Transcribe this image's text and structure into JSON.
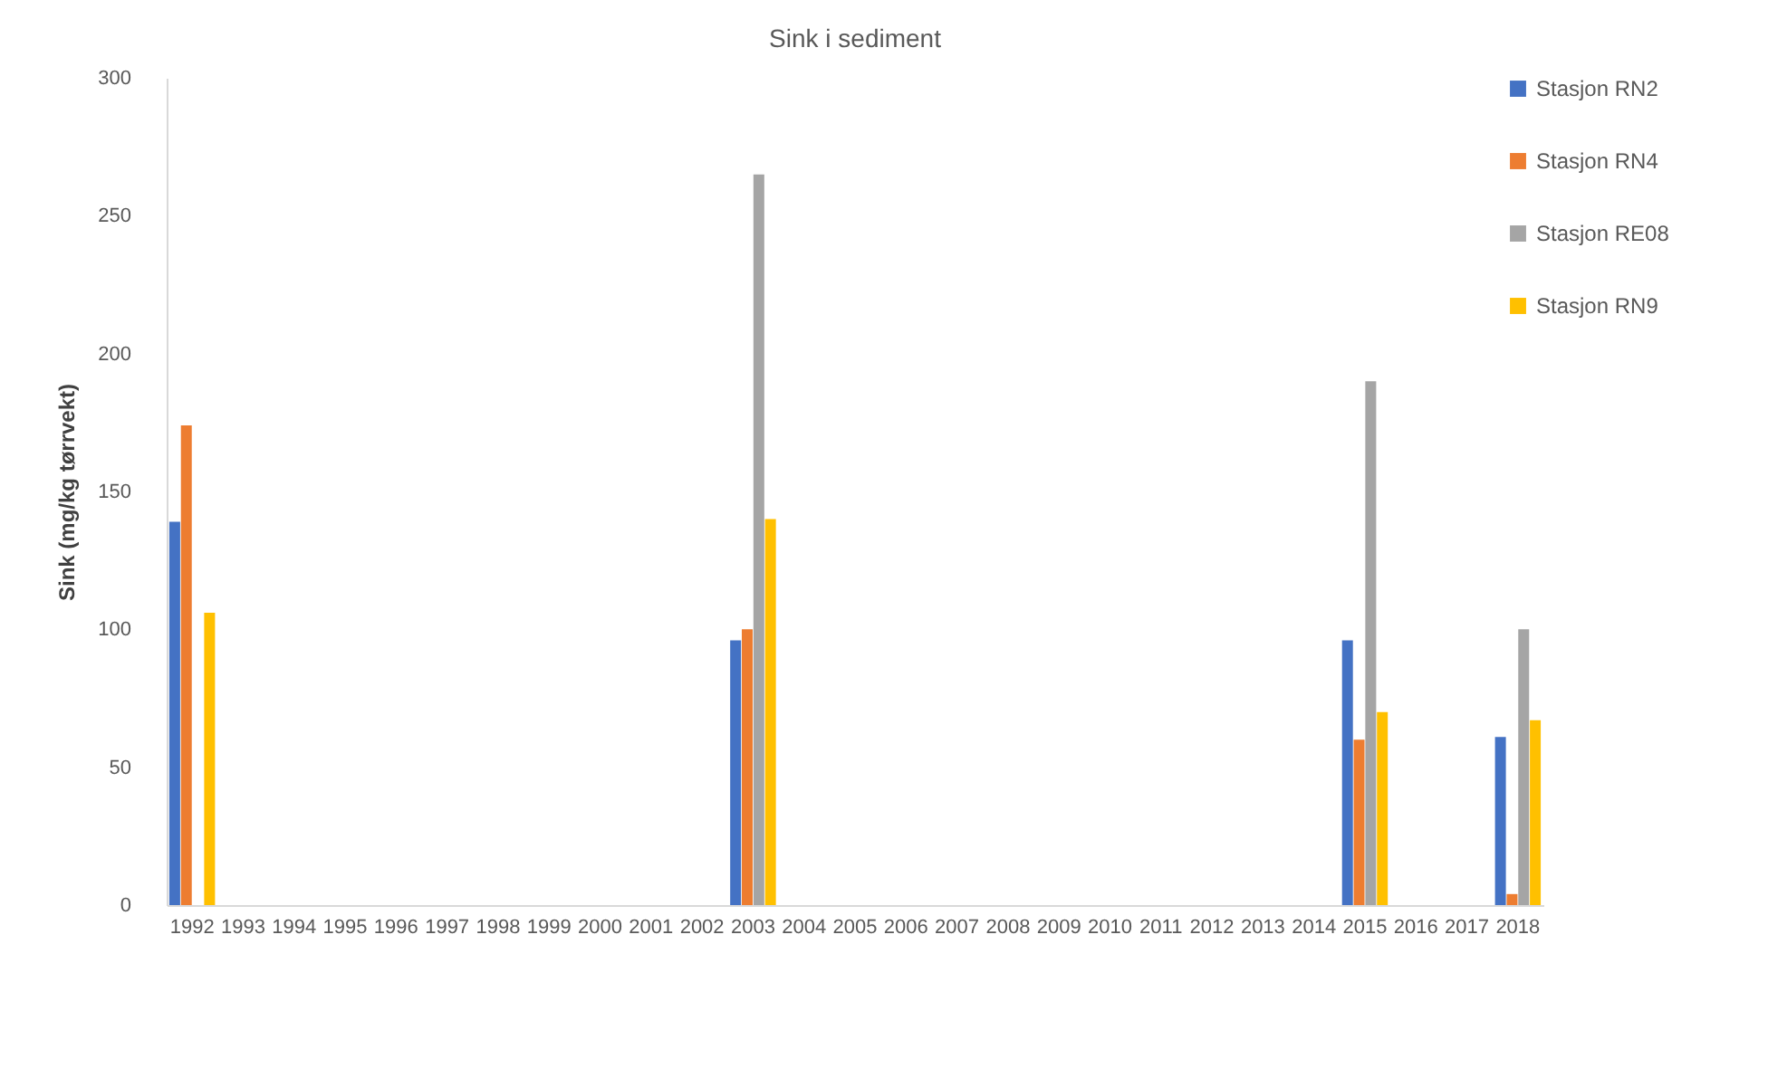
{
  "chart_data": {
    "type": "bar",
    "title": "Sink i sediment",
    "ylabel": "Sink (mg/kg tørrvekt)",
    "categories": [
      "1992",
      "1993",
      "1994",
      "1995",
      "1996",
      "1997",
      "1998",
      "1999",
      "2000",
      "2001",
      "2002",
      "2003",
      "2004",
      "2005",
      "2006",
      "2007",
      "2008",
      "2009",
      "2010",
      "2011",
      "2012",
      "2013",
      "2014",
      "2015",
      "2016",
      "2017",
      "2018"
    ],
    "series": [
      {
        "name": "Stasjon RN2",
        "color": "#4472c4",
        "values": [
          139,
          null,
          null,
          null,
          null,
          null,
          null,
          null,
          null,
          null,
          null,
          96,
          null,
          null,
          null,
          null,
          null,
          null,
          null,
          null,
          null,
          null,
          null,
          96,
          null,
          null,
          61
        ]
      },
      {
        "name": "Stasjon RN4",
        "color": "#ed7d31",
        "values": [
          174,
          null,
          null,
          null,
          null,
          null,
          null,
          null,
          null,
          null,
          null,
          100,
          null,
          null,
          null,
          null,
          null,
          null,
          null,
          null,
          null,
          null,
          null,
          60,
          null,
          null,
          4
        ]
      },
      {
        "name": "Stasjon RE08",
        "color": "#a5a5a5",
        "values": [
          null,
          null,
          null,
          null,
          null,
          null,
          null,
          null,
          null,
          null,
          null,
          265,
          null,
          null,
          null,
          null,
          null,
          null,
          null,
          null,
          null,
          null,
          null,
          190,
          null,
          null,
          100
        ]
      },
      {
        "name": "Stasjon RN9",
        "color": "#ffc000",
        "values": [
          106,
          null,
          null,
          null,
          null,
          null,
          null,
          null,
          null,
          null,
          null,
          140,
          null,
          null,
          null,
          null,
          null,
          null,
          null,
          null,
          null,
          null,
          null,
          70,
          null,
          null,
          67
        ]
      }
    ],
    "ylim": [
      0,
      300
    ],
    "yticks": [
      0,
      50,
      100,
      150,
      200,
      250,
      300
    ],
    "grid": false,
    "legend": "top right"
  }
}
